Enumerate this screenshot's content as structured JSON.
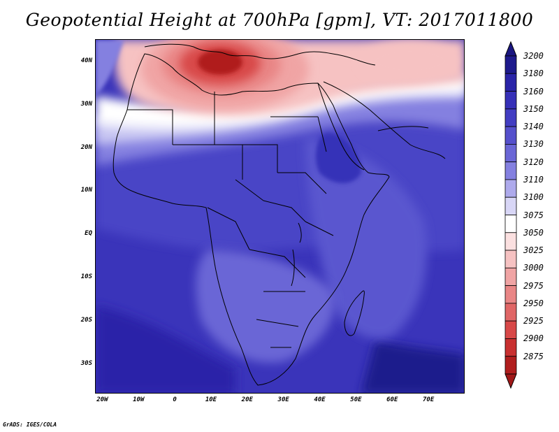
{
  "title": "Geopotential Height at 700hPa [gpm], VT: 2017011800",
  "credit": "GrADS: IGES/COLA",
  "map": {
    "variable": "Geopotential Height",
    "level": "700hPa",
    "units": "gpm",
    "valid_time": "2017011800",
    "lon_range": [
      -22,
      80
    ],
    "lat_range": [
      -37,
      45
    ],
    "lat_ticks": [
      {
        "value": 40,
        "label": "40N"
      },
      {
        "value": 30,
        "label": "30N"
      },
      {
        "value": 20,
        "label": "20N"
      },
      {
        "value": 10,
        "label": "10N"
      },
      {
        "value": 0,
        "label": "EQ"
      },
      {
        "value": -10,
        "label": "10S"
      },
      {
        "value": -20,
        "label": "20S"
      },
      {
        "value": -30,
        "label": "30S"
      }
    ],
    "lon_ticks": [
      {
        "value": -20,
        "label": "20W"
      },
      {
        "value": -10,
        "label": "10W"
      },
      {
        "value": 0,
        "label": "0"
      },
      {
        "value": 10,
        "label": "10E"
      },
      {
        "value": 20,
        "label": "20E"
      },
      {
        "value": 30,
        "label": "30E"
      },
      {
        "value": 40,
        "label": "40E"
      },
      {
        "value": 50,
        "label": "50E"
      },
      {
        "value": 60,
        "label": "60E"
      },
      {
        "value": 70,
        "label": "70E"
      }
    ],
    "low_center": {
      "lon": 12,
      "lat": 38,
      "approx_value": 2880
    },
    "coastline": "Africa"
  },
  "colorbar": {
    "levels": [
      {
        "value": "3200",
        "color": "#1e1a8c"
      },
      {
        "value": "3180",
        "color": "#2a24a8"
      },
      {
        "value": "3160",
        "color": "#3630b8"
      },
      {
        "value": "3150",
        "color": "#423dc2"
      },
      {
        "value": "3140",
        "color": "#5550cc"
      },
      {
        "value": "3130",
        "color": "#6a66d6"
      },
      {
        "value": "3120",
        "color": "#8480e0"
      },
      {
        "value": "3110",
        "color": "#aeaaec"
      },
      {
        "value": "3100",
        "color": "#d8d6f6"
      },
      {
        "value": "3075",
        "color": "#ffffff"
      },
      {
        "value": "3050",
        "color": "#fbe0e0"
      },
      {
        "value": "3025",
        "color": "#f6c2c2"
      },
      {
        "value": "3000",
        "color": "#f0a4a4"
      },
      {
        "value": "2975",
        "color": "#e98686"
      },
      {
        "value": "2950",
        "color": "#e06666"
      },
      {
        "value": "2925",
        "color": "#d84848"
      },
      {
        "value": "2900",
        "color": "#c83030"
      },
      {
        "value": "2875",
        "color": "#b01e1e"
      }
    ],
    "top_arrow_color": "#1a1680",
    "bottom_arrow_color": "#a01818"
  }
}
